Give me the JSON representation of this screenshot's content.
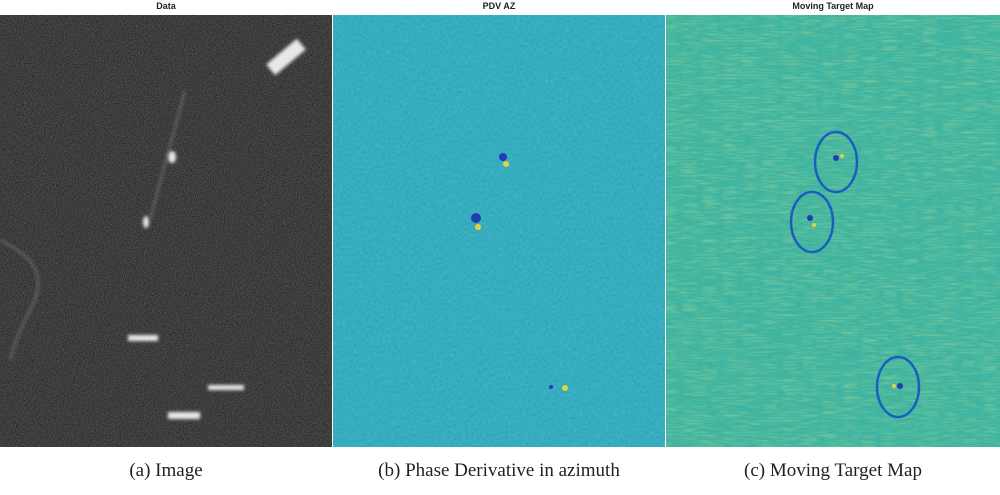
{
  "panels": [
    {
      "title": "Data",
      "caption": "(a) Image"
    },
    {
      "title": "PDV AZ",
      "caption": "(b) Phase Derivative in azimuth"
    },
    {
      "title": "Moving Target Map",
      "caption": "(c) Moving Target Map"
    }
  ]
}
